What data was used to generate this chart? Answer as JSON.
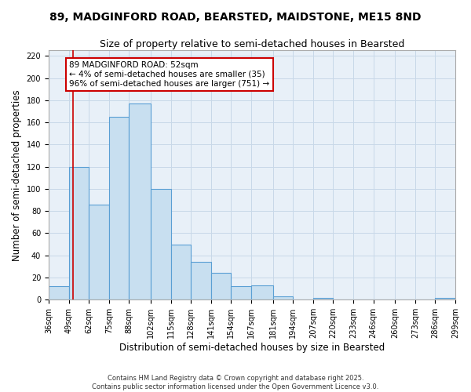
{
  "title": "89, MADGINFORD ROAD, BEARSTED, MAIDSTONE, ME15 8ND",
  "subtitle": "Size of property relative to semi-detached houses in Bearsted",
  "xlabel": "Distribution of semi-detached houses by size in Bearsted",
  "ylabel": "Number of semi-detached properties",
  "bin_labels": [
    "36sqm",
    "49sqm",
    "62sqm",
    "75sqm",
    "88sqm",
    "102sqm",
    "115sqm",
    "128sqm",
    "141sqm",
    "154sqm",
    "167sqm",
    "181sqm",
    "194sqm",
    "207sqm",
    "220sqm",
    "233sqm",
    "246sqm",
    "260sqm",
    "273sqm",
    "286sqm",
    "299sqm"
  ],
  "bin_edges": [
    36,
    49,
    62,
    75,
    88,
    102,
    115,
    128,
    141,
    154,
    167,
    181,
    194,
    207,
    220,
    233,
    246,
    260,
    273,
    286,
    299
  ],
  "bar_heights": [
    12,
    120,
    86,
    165,
    177,
    100,
    50,
    34,
    24,
    12,
    13,
    3,
    0,
    2,
    0,
    0,
    0,
    0,
    0,
    2
  ],
  "bar_color": "#c8dff0",
  "bar_edge_color": "#5a9fd4",
  "property_size": 52,
  "vline_color": "#cc0000",
  "annotation_line1": "89 MADGINFORD ROAD: 52sqm",
  "annotation_line2": "← 4% of semi-detached houses are smaller (35)",
  "annotation_line3": "96% of semi-detached houses are larger (751) →",
  "annotation_box_color": "#ffffff",
  "annotation_box_edge_color": "#cc0000",
  "ylim": [
    0,
    225
  ],
  "yticks": [
    0,
    20,
    40,
    60,
    80,
    100,
    120,
    140,
    160,
    180,
    200,
    220
  ],
  "grid_color": "#c8d8e8",
  "footer_text": "Contains HM Land Registry data © Crown copyright and database right 2025.\nContains public sector information licensed under the Open Government Licence v3.0.",
  "bg_color": "#ffffff",
  "plot_bg_color": "#e8f0f8",
  "title_fontsize": 10,
  "subtitle_fontsize": 9,
  "tick_fontsize": 7,
  "label_fontsize": 8.5
}
